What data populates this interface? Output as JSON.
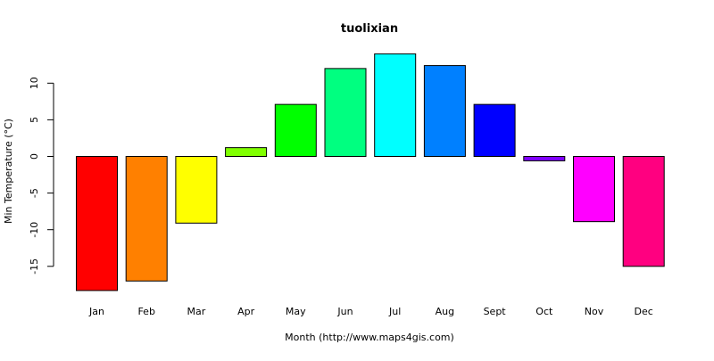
{
  "chart_data": {
    "type": "bar",
    "title": "tuolixian",
    "xlabel": "Month (http://www.maps4gis.com)",
    "ylabel": "Min Temperature (°C)",
    "categories": [
      "Jan",
      "Feb",
      "Mar",
      "Apr",
      "May",
      "Jun",
      "Jul",
      "Aug",
      "Sept",
      "Oct",
      "Nov",
      "Dec"
    ],
    "values": [
      -18.3,
      -17.0,
      -9.1,
      1.2,
      7.1,
      12.0,
      14.0,
      12.4,
      7.1,
      -0.6,
      -8.9,
      -15.0
    ],
    "colors": [
      "#FF0000",
      "#FF8000",
      "#FFFF00",
      "#80FF00",
      "#00FF00",
      "#00FF80",
      "#00FFFF",
      "#0080FF",
      "#0000FF",
      "#8000FF",
      "#FF00FF",
      "#FF0080"
    ],
    "yticks": [
      -15,
      -10,
      -5,
      0,
      5,
      10
    ],
    "ytick_labels": [
      "-15",
      "-10",
      "-5",
      "0",
      "5",
      "10"
    ],
    "ylim": [
      -18.3,
      14.0
    ],
    "grid": false,
    "legend": "none"
  }
}
